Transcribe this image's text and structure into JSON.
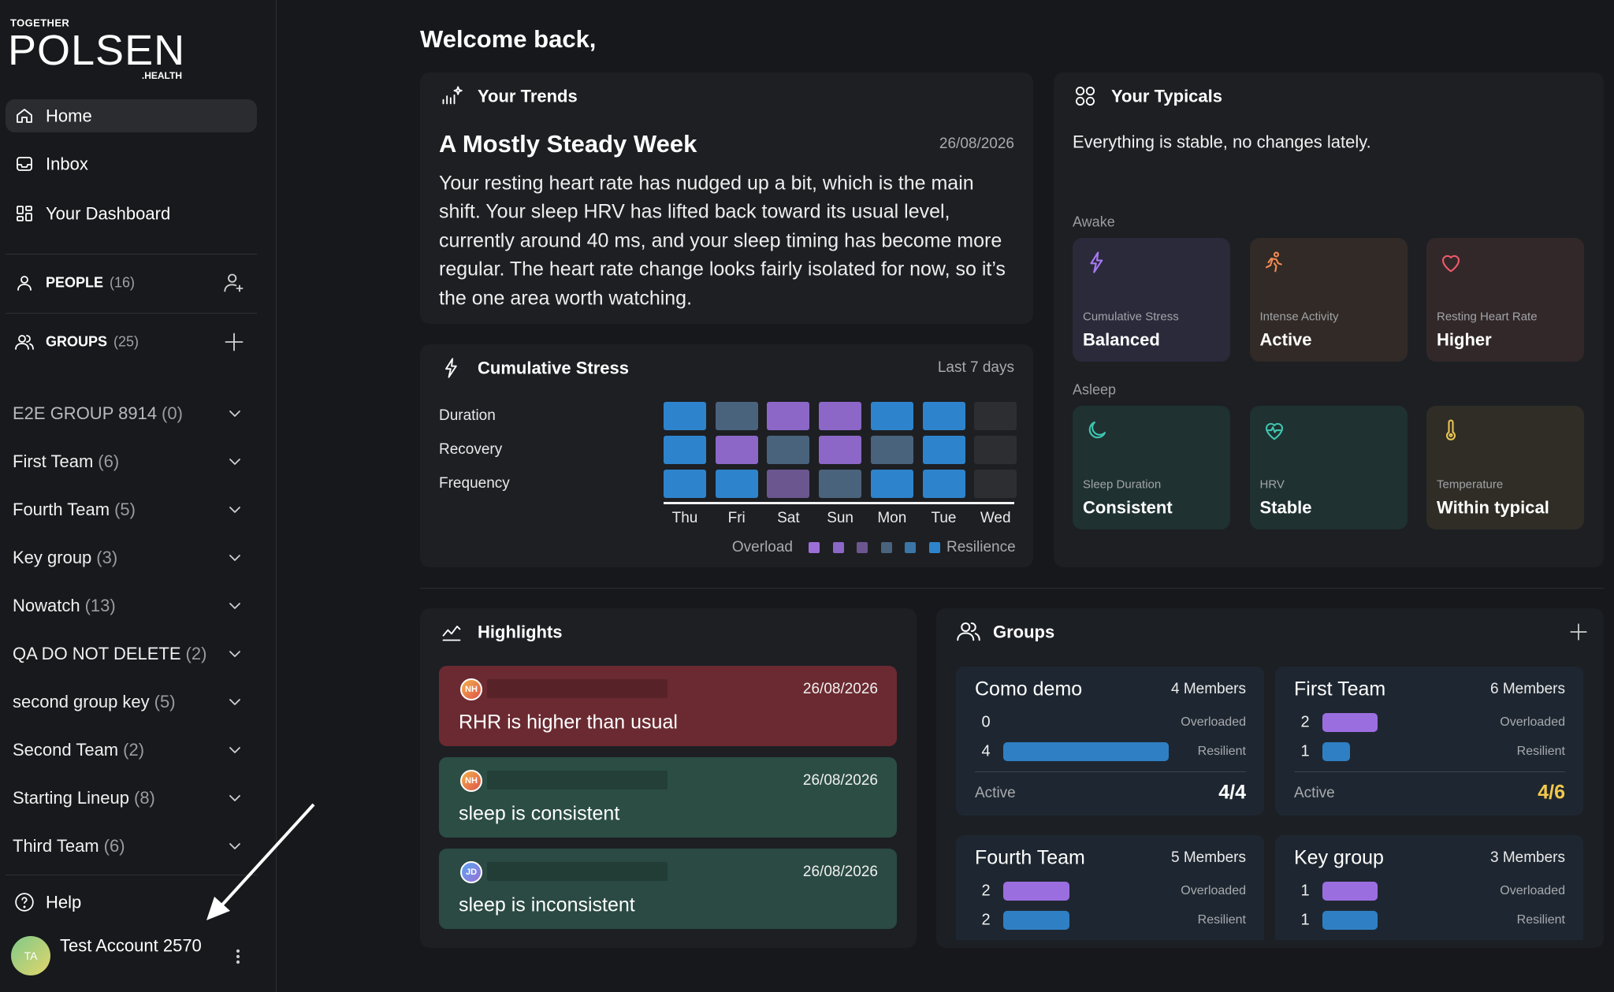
{
  "sidebar": {
    "brand": {
      "top": "TOGETHER",
      "name": "POLSEN",
      "sub": ".HEALTH"
    },
    "nav": [
      "Home",
      "Inbox",
      "Your Dashboard"
    ],
    "people": {
      "label": "PEOPLE",
      "count": "(16)"
    },
    "groups": {
      "label": "GROUPS",
      "count": "(25)"
    },
    "group_list": [
      {
        "name": "E2E GROUP 8914",
        "count": "(0)"
      },
      {
        "name": "First Team",
        "count": "(6)"
      },
      {
        "name": "Fourth Team",
        "count": "(5)"
      },
      {
        "name": "Key group",
        "count": "(3)"
      },
      {
        "name": "Nowatch",
        "count": "(13)"
      },
      {
        "name": "QA DO NOT DELETE",
        "count": "(2)"
      },
      {
        "name": "second group key",
        "count": "(5)"
      },
      {
        "name": "Second Team",
        "count": "(2)"
      },
      {
        "name": "Starting Lineup",
        "count": "(8)"
      },
      {
        "name": "Third Team",
        "count": "(6)"
      }
    ],
    "help": "Help",
    "account": {
      "initials": "TA",
      "name": "Test Account 2570"
    }
  },
  "greeting": "Welcome back,",
  "trends": {
    "title": "Your Trends",
    "heading": "A Mostly Steady Week",
    "date": "26/08/2026",
    "body": [
      "Your resting heart rate has nudged up a bit, which is the main",
      "shift. Your sleep HRV has lifted back toward its usual level,",
      "currently around 40 ms, and your sleep timing has become more",
      "regular. The heart rate change looks fairly isolated for now, so it’s",
      "the one area worth watching."
    ]
  },
  "stress": {
    "title": "Cumulative Stress",
    "range": "Last 7 days",
    "days": [
      "Thu",
      "Fri",
      "Sat",
      "Sun",
      "Mon",
      "Tue",
      "Wed"
    ],
    "rows": [
      {
        "label": "Duration",
        "levels": [
          5,
          3,
          1,
          1,
          5,
          5,
          null
        ]
      },
      {
        "label": "Recovery",
        "levels": [
          5,
          1,
          3,
          1,
          3,
          5,
          null
        ]
      },
      {
        "label": "Frequency",
        "levels": [
          5,
          5,
          2,
          3,
          5,
          5,
          null
        ]
      }
    ],
    "legend": {
      "low": "Overload",
      "high": "Resilience",
      "colors": [
        "#9b6fd6",
        "#8c67c8",
        "#6c568f",
        "#4a637c",
        "#3b76a6",
        "#2e84cc"
      ]
    }
  },
  "typicals": {
    "title": "Your Typicals",
    "summary": "Everything is stable, no changes lately.",
    "sections": [
      {
        "label": "Awake",
        "items": [
          {
            "label": "Cumulative Stress",
            "value": "Balanced"
          },
          {
            "label": "Intense Activity",
            "value": "Active"
          },
          {
            "label": "Resting Heart Rate",
            "value": "Higher"
          }
        ]
      },
      {
        "label": "Asleep",
        "items": [
          {
            "label": "Sleep Duration",
            "value": "Consistent"
          },
          {
            "label": "HRV",
            "value": "Stable"
          },
          {
            "label": "Temperature",
            "value": "Within typical"
          }
        ]
      }
    ]
  },
  "highlights": {
    "title": "Highlights",
    "items": [
      {
        "initials": "NH",
        "date": "26/08/2026",
        "text": "RHR is higher than usual"
      },
      {
        "initials": "NH",
        "date": "26/08/2026",
        "text": "sleep is consistent"
      },
      {
        "initials": "JD",
        "date": "26/08/2026",
        "text": "sleep is inconsistent"
      }
    ]
  },
  "groups_panel": {
    "title": "Groups",
    "overloaded_label": "Overloaded",
    "resilient_label": "Resilient",
    "active_label": "Active",
    "cards": [
      {
        "name": "Como demo",
        "members": "4 Members",
        "overloaded": 0,
        "resilient": 4,
        "active": "4/4"
      },
      {
        "name": "First Team",
        "members": "6 Members",
        "overloaded": 2,
        "resilient": 1,
        "active": "4/6"
      },
      {
        "name": "Fourth Team",
        "members": "5 Members",
        "overloaded": 2,
        "resilient": 2,
        "active": null
      },
      {
        "name": "Key group",
        "members": "3 Members",
        "overloaded": 1,
        "resilient": 1,
        "active": null
      }
    ]
  }
}
